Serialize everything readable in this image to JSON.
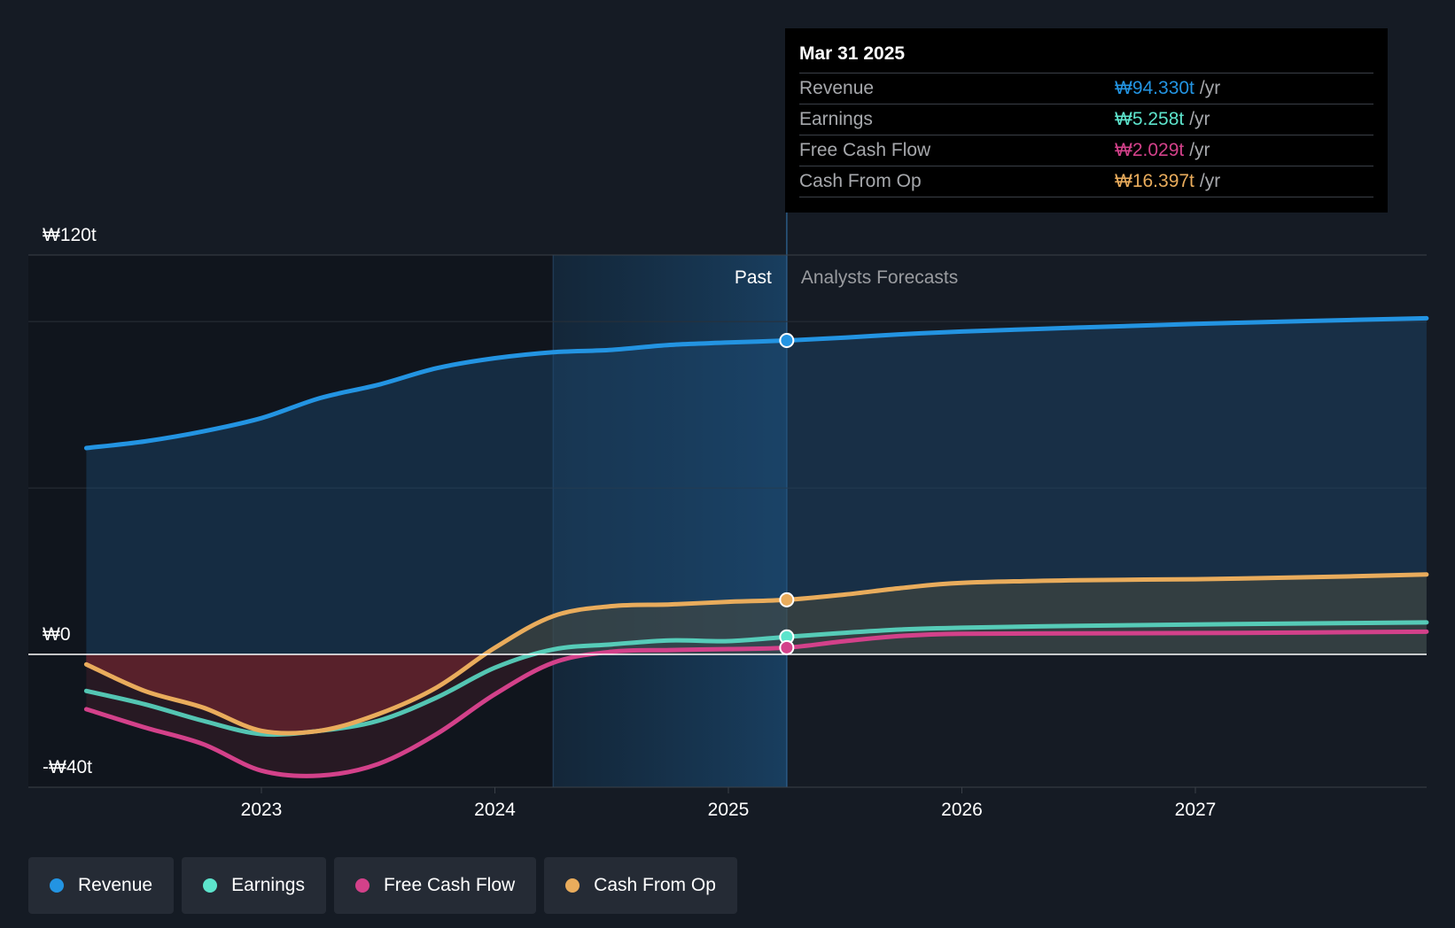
{
  "tooltip": {
    "date": "Mar 31 2025",
    "rows": [
      {
        "label": "Revenue",
        "value": "₩94.330t",
        "unit": "/yr",
        "color": "#2394e2"
      },
      {
        "label": "Earnings",
        "value": "₩5.258t",
        "unit": "/yr",
        "color": "#5de4cc"
      },
      {
        "label": "Free Cash Flow",
        "value": "₩2.029t",
        "unit": "/yr",
        "color": "#d3418a"
      },
      {
        "label": "Cash From Op",
        "value": "₩16.397t",
        "unit": "/yr",
        "color": "#e9ac5c"
      }
    ]
  },
  "legend": [
    {
      "label": "Revenue",
      "color": "#2394e2"
    },
    {
      "label": "Earnings",
      "color": "#5de4cc"
    },
    {
      "label": "Free Cash Flow",
      "color": "#d3418a"
    },
    {
      "label": "Cash From Op",
      "color": "#e9ac5c"
    }
  ],
  "chart_data": {
    "type": "area",
    "y_tick_labels": [
      {
        "value": 120,
        "label": "₩120t"
      },
      {
        "value": 0,
        "label": "₩0"
      },
      {
        "value": -40,
        "label": "-₩40t"
      }
    ],
    "ylim": [
      -40,
      120
    ],
    "x_ticks": [
      2023,
      2024,
      2025,
      2026,
      2027
    ],
    "xlim": [
      2022.0,
      2027.99
    ],
    "region_labels": {
      "past": "Past",
      "forecast": "Analysts Forecasts"
    },
    "past_highlight_start": 2024.25,
    "forecast_start": 2025.25,
    "series": [
      {
        "name": "Revenue",
        "color": "#2394e2",
        "points": [
          [
            2022.25,
            62
          ],
          [
            2022.5,
            64
          ],
          [
            2022.75,
            67
          ],
          [
            2023.0,
            71
          ],
          [
            2023.25,
            77
          ],
          [
            2023.5,
            81
          ],
          [
            2023.75,
            86
          ],
          [
            2024.0,
            89
          ],
          [
            2024.25,
            90.8
          ],
          [
            2024.5,
            91.5
          ],
          [
            2024.75,
            93
          ],
          [
            2025.0,
            93.7
          ],
          [
            2025.25,
            94.33
          ],
          [
            2025.5,
            95.2
          ],
          [
            2025.75,
            96.2
          ],
          [
            2026.0,
            97
          ],
          [
            2026.5,
            98.2
          ],
          [
            2027.0,
            99.3
          ],
          [
            2027.5,
            100.2
          ],
          [
            2027.99,
            101
          ]
        ]
      },
      {
        "name": "Earnings",
        "color": "#5de4cc",
        "points": [
          [
            2022.25,
            -11
          ],
          [
            2022.5,
            -15
          ],
          [
            2022.75,
            -20
          ],
          [
            2023.0,
            -24
          ],
          [
            2023.25,
            -23
          ],
          [
            2023.5,
            -20
          ],
          [
            2023.75,
            -13
          ],
          [
            2024.0,
            -4
          ],
          [
            2024.25,
            1.5
          ],
          [
            2024.5,
            3
          ],
          [
            2024.75,
            4.2
          ],
          [
            2025.0,
            4
          ],
          [
            2025.25,
            5.26
          ],
          [
            2025.5,
            6.5
          ],
          [
            2025.75,
            7.5
          ],
          [
            2026.0,
            8
          ],
          [
            2026.5,
            8.6
          ],
          [
            2027.0,
            9
          ],
          [
            2027.5,
            9.3
          ],
          [
            2027.99,
            9.6
          ]
        ]
      },
      {
        "name": "Free Cash Flow",
        "color": "#d3418a",
        "points": [
          [
            2022.25,
            -16.5
          ],
          [
            2022.5,
            -22
          ],
          [
            2022.75,
            -27
          ],
          [
            2023.0,
            -35
          ],
          [
            2023.25,
            -36.5
          ],
          [
            2023.5,
            -33
          ],
          [
            2023.75,
            -24
          ],
          [
            2024.0,
            -12
          ],
          [
            2024.25,
            -2.5
          ],
          [
            2024.5,
            0.8
          ],
          [
            2024.75,
            1.3
          ],
          [
            2025.0,
            1.6
          ],
          [
            2025.25,
            2.03
          ],
          [
            2025.5,
            4
          ],
          [
            2025.75,
            5.6
          ],
          [
            2026.0,
            6.2
          ],
          [
            2026.5,
            6.3
          ],
          [
            2027.0,
            6.4
          ],
          [
            2027.5,
            6.6
          ],
          [
            2027.99,
            6.8
          ]
        ]
      },
      {
        "name": "Cash From Op",
        "color": "#e9ac5c",
        "points": [
          [
            2022.25,
            -3
          ],
          [
            2022.5,
            -11
          ],
          [
            2022.75,
            -16
          ],
          [
            2023.0,
            -23
          ],
          [
            2023.25,
            -23
          ],
          [
            2023.5,
            -18
          ],
          [
            2023.75,
            -10
          ],
          [
            2024.0,
            2
          ],
          [
            2024.25,
            11.5
          ],
          [
            2024.5,
            14.5
          ],
          [
            2024.75,
            15
          ],
          [
            2025.0,
            15.8
          ],
          [
            2025.25,
            16.4
          ],
          [
            2025.5,
            18
          ],
          [
            2025.75,
            20
          ],
          [
            2026.0,
            21.5
          ],
          [
            2026.5,
            22.3
          ],
          [
            2027.0,
            22.6
          ],
          [
            2027.5,
            23.2
          ],
          [
            2027.99,
            24
          ]
        ]
      }
    ]
  }
}
